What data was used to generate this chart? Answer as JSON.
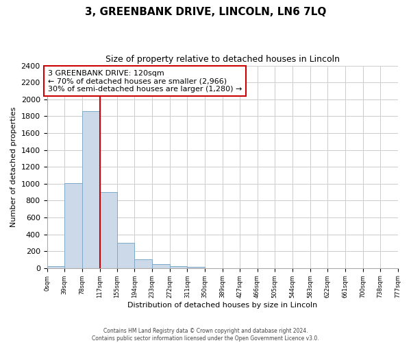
{
  "title": "3, GREENBANK DRIVE, LINCOLN, LN6 7LQ",
  "subtitle": "Size of property relative to detached houses in Lincoln",
  "xlabel": "Distribution of detached houses by size in Lincoln",
  "ylabel": "Number of detached properties",
  "bin_edges": [
    0,
    39,
    78,
    117,
    155,
    194,
    233,
    272,
    311,
    350,
    389,
    427,
    466,
    505,
    544,
    583,
    622,
    661,
    700,
    738,
    777
  ],
  "bar_heights": [
    25,
    1010,
    1860,
    900,
    300,
    100,
    45,
    25,
    10,
    0,
    0,
    0,
    0,
    0,
    0,
    0,
    0,
    0,
    0,
    0
  ],
  "bar_color": "#ccd9e8",
  "bar_edgecolor": "#7da8c8",
  "property_line_x": 117,
  "property_line_color": "#cc0000",
  "ylim": [
    0,
    2400
  ],
  "yticks": [
    0,
    200,
    400,
    600,
    800,
    1000,
    1200,
    1400,
    1600,
    1800,
    2000,
    2200,
    2400
  ],
  "tick_labels": [
    "0sqm",
    "39sqm",
    "78sqm",
    "117sqm",
    "155sqm",
    "194sqm",
    "233sqm",
    "272sqm",
    "311sqm",
    "350sqm",
    "389sqm",
    "427sqm",
    "466sqm",
    "505sqm",
    "544sqm",
    "583sqm",
    "622sqm",
    "661sqm",
    "700sqm",
    "738sqm",
    "777sqm"
  ],
  "annotation_title": "3 GREENBANK DRIVE: 120sqm",
  "annotation_line1": "← 70% of detached houses are smaller (2,966)",
  "annotation_line2": "30% of semi-detached houses are larger (1,280) →",
  "footer_line1": "Contains HM Land Registry data © Crown copyright and database right 2024.",
  "footer_line2": "Contains public sector information licensed under the Open Government Licence v3.0.",
  "background_color": "#ffffff",
  "grid_color": "#cccccc"
}
